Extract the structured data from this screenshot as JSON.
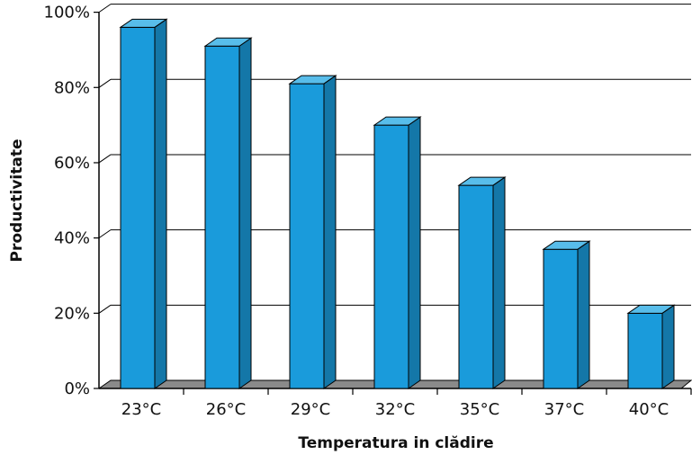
{
  "chart_data": {
    "type": "bar",
    "style": "3d-column",
    "categories": [
      "23°C",
      "26°C",
      "29°C",
      "32°C",
      "35°C",
      "37°C",
      "40°C"
    ],
    "values": [
      96,
      91,
      81,
      70,
      54,
      37,
      20
    ],
    "value_unit": "%",
    "xlabel": "Temperatura in clădire",
    "ylabel": "Productivitate",
    "ylim": [
      0,
      100
    ],
    "yticks": [
      "0%",
      "20%",
      "40%",
      "60%",
      "80%",
      "100%"
    ],
    "grid": "horizontal",
    "legend": "none",
    "colors": {
      "bar_front": "#1A9BDB",
      "bar_side": "#1477A8",
      "bar_top": "#58BDEA",
      "floor": "#8A8A8A",
      "edge": "#000000"
    }
  }
}
